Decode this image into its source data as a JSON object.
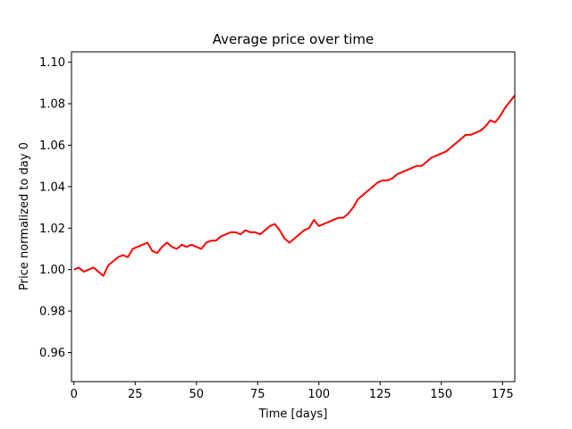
{
  "chart_data": {
    "type": "line",
    "title": "Average price over time",
    "xlabel": "Time [days]",
    "ylabel": "Price normalized to day 0",
    "xlim": [
      -1,
      180
    ],
    "ylim": [
      0.946,
      1.105
    ],
    "xticks": [
      0,
      25,
      50,
      75,
      100,
      125,
      150,
      175
    ],
    "yticks": [
      0.96,
      0.98,
      1.0,
      1.02,
      1.04,
      1.06,
      1.08,
      1.1
    ],
    "xtick_labels": [
      "0",
      "25",
      "50",
      "75",
      "100",
      "125",
      "150",
      "175"
    ],
    "ytick_labels": [
      "0.96",
      "0.98",
      "1.00",
      "1.02",
      "1.04",
      "1.06",
      "1.08",
      "1.10"
    ],
    "grid": false,
    "legend": null,
    "series": [
      {
        "color": "#ff0000",
        "x": [
          0,
          2,
          4,
          6,
          8,
          10,
          12,
          14,
          16,
          18,
          20,
          22,
          24,
          26,
          28,
          30,
          32,
          34,
          36,
          38,
          40,
          42,
          44,
          46,
          48,
          50,
          52,
          54,
          56,
          58,
          60,
          62,
          64,
          66,
          68,
          70,
          72,
          74,
          76,
          78,
          80,
          82,
          84,
          86,
          88,
          90,
          92,
          94,
          96,
          98,
          100,
          102,
          104,
          106,
          108,
          110,
          112,
          114,
          116,
          118,
          120,
          122,
          124,
          126,
          128,
          130,
          132,
          134,
          136,
          138,
          140,
          142,
          144,
          146,
          148,
          150,
          152,
          154,
          156,
          158,
          160,
          162,
          164,
          166,
          168,
          170,
          172,
          174,
          176,
          178,
          180
        ],
        "y": [
          1.0,
          1.001,
          0.999,
          1.0,
          1.001,
          0.999,
          0.997,
          1.002,
          1.004,
          1.006,
          1.007,
          1.006,
          1.01,
          1.011,
          1.012,
          1.013,
          1.009,
          1.008,
          1.011,
          1.013,
          1.011,
          1.01,
          1.012,
          1.011,
          1.012,
          1.011,
          1.01,
          1.013,
          1.014,
          1.014,
          1.016,
          1.017,
          1.018,
          1.018,
          1.017,
          1.019,
          1.018,
          1.018,
          1.017,
          1.019,
          1.021,
          1.022,
          1.019,
          1.015,
          1.013,
          1.015,
          1.017,
          1.019,
          1.02,
          1.024,
          1.021,
          1.022,
          1.023,
          1.024,
          1.025,
          1.025,
          1.027,
          1.03,
          1.034,
          1.036,
          1.038,
          1.04,
          1.042,
          1.043,
          1.043,
          1.044,
          1.046,
          1.047,
          1.048,
          1.049,
          1.05,
          1.05,
          1.052,
          1.054,
          1.055,
          1.056,
          1.057,
          1.059,
          1.061,
          1.063,
          1.065,
          1.065,
          1.066,
          1.067,
          1.069,
          1.072,
          1.071,
          1.074,
          1.078,
          1.081,
          1.084
        ]
      }
    ]
  }
}
